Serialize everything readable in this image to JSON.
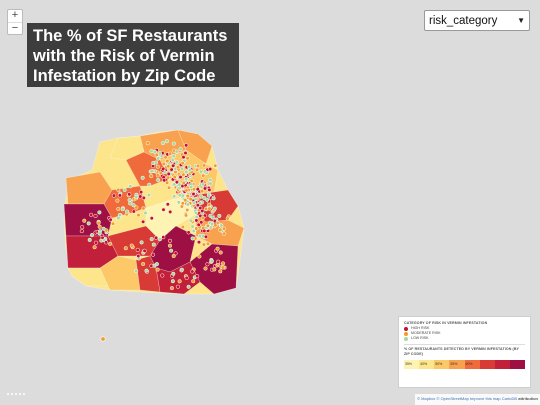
{
  "map": {
    "title": "The % of SF Restaurants with the Risk of Vermin Infestation by Zip Code",
    "zoom_in_label": "+",
    "zoom_out_label": "−",
    "select": {
      "value": "risk_category"
    },
    "legend": {
      "category_title": "CATEGORY OF RISK IN VERMIN INFESTATION",
      "categories": [
        {
          "label": "HIGH RISK",
          "color": "#c8102e"
        },
        {
          "label": "MODERATE RISK",
          "color": "#f39c2a"
        },
        {
          "label": "LOW RISK",
          "color": "#a8d8a0"
        }
      ],
      "percent_title": "% OF RESTAURANTS DETECTED BY VERMIN INFESTATION (BY ZIP CODE)",
      "bins": [
        {
          "label": "35%",
          "color": "#fdf4b4"
        },
        {
          "label": "40%",
          "color": "#fde58c"
        },
        {
          "label": "50%",
          "color": "#fcc868"
        },
        {
          "label": "55%",
          "color": "#f8a24f"
        },
        {
          "label": "60%",
          "color": "#ef6b3c"
        },
        {
          "label": "",
          "color": "#d83b35"
        },
        {
          "label": "",
          "color": "#c21f3a"
        },
        {
          "label": "",
          "color": "#9e1044"
        }
      ]
    },
    "attribution": {
      "mapbox": "© Mapbox",
      "osm": "© OpenStreetMap",
      "improve": "Improve this map",
      "carto": "CartoDB",
      "carto_suffix": "attribution"
    }
  }
}
